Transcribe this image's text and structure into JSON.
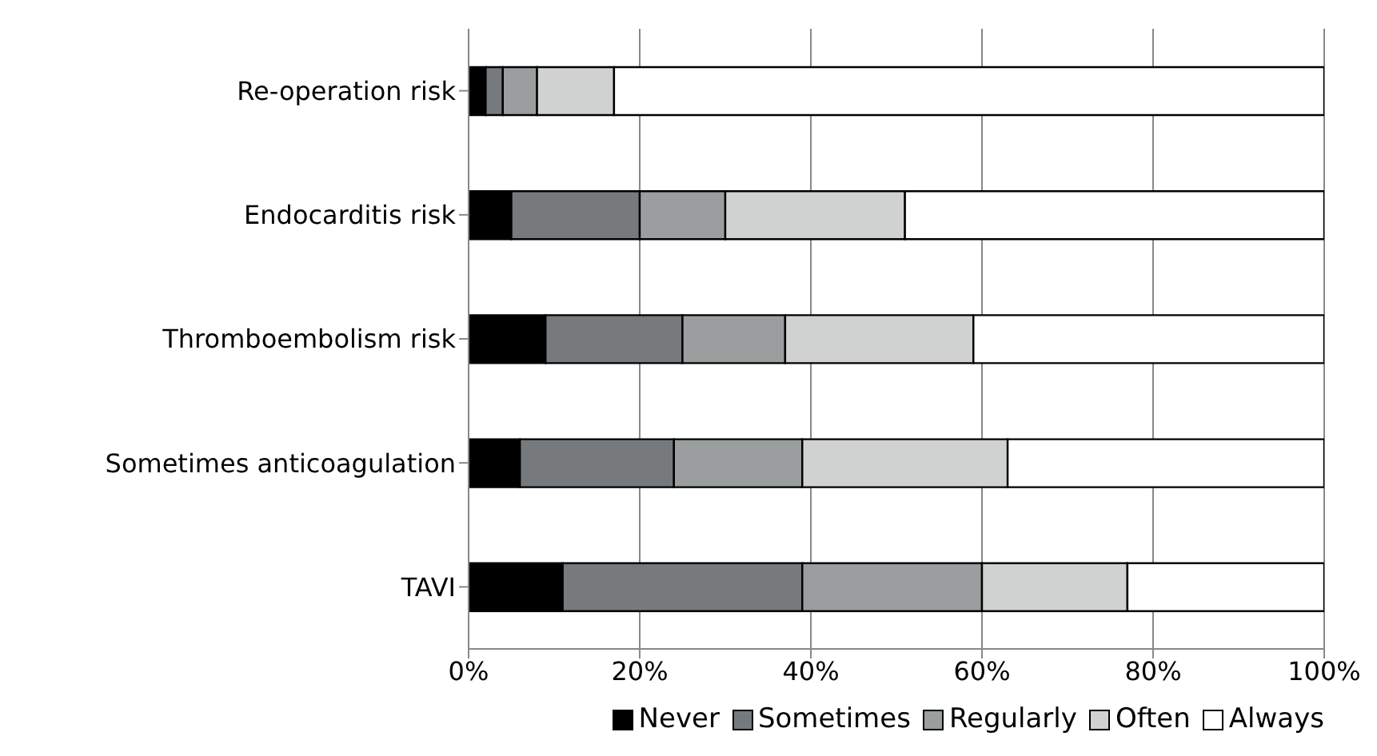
{
  "chart_data": {
    "type": "bar",
    "orientation": "horizontal",
    "stacked": true,
    "categories": [
      "Re-operation risk",
      "Endocarditis risk",
      "Thromboembolism risk",
      "Sometimes anticoagulation",
      "TAVI"
    ],
    "series": [
      {
        "name": "Never",
        "color": "#000000",
        "values": [
          2,
          5,
          9,
          6,
          11
        ]
      },
      {
        "name": "Sometimes",
        "color": "#767a7d",
        "values": [
          2,
          15,
          16,
          18,
          28
        ]
      },
      {
        "name": "Regularly",
        "color": "#9a9e9f",
        "values": [
          4,
          10,
          12,
          15,
          21
        ]
      },
      {
        "name": "Often",
        "color": "#d0d2d1",
        "values": [
          9,
          21,
          22,
          24,
          17
        ]
      },
      {
        "name": "Always",
        "color": "#ffffff",
        "values": [
          83,
          49,
          41,
          37,
          23
        ]
      }
    ],
    "xlim": [
      0,
      100
    ],
    "xticks": [
      {
        "value": 0,
        "label": "0%"
      },
      {
        "value": 20,
        "label": "20%"
      },
      {
        "value": 40,
        "label": "40%"
      },
      {
        "value": 60,
        "label": "60%"
      },
      {
        "value": 80,
        "label": "80%"
      },
      {
        "value": 100,
        "label": "100%"
      }
    ],
    "grid": "x",
    "legend": "bottom"
  }
}
